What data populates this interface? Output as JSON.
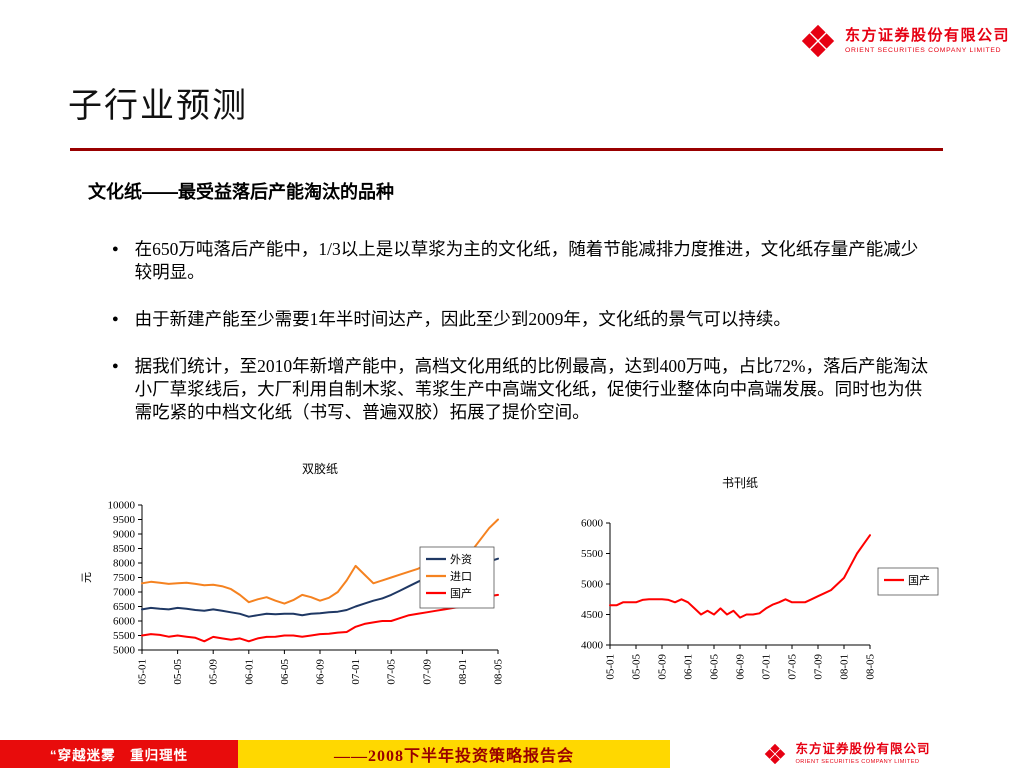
{
  "logo": {
    "company_cn": "东方证券股份有限公司",
    "company_en": "ORIENT SECURITIES COMPANY LIMITED",
    "brand_color": "#E60012"
  },
  "header": {
    "title": "子行业预测",
    "divider_color": "#990000"
  },
  "content": {
    "bullet_marker": "●",
    "subtitle": "文化纸——最受益落后产能淘汰的品种",
    "bullets": [
      "在650万吨落后产能中，1/3以上是以草浆为主的文化纸，随着节能减排力度推进，文化纸存量产能减少较明显。",
      "由于新建产能至少需要1年半时间达产，因此至少到2009年，文化纸的景气可以持续。",
      "据我们统计，至2010年新增产能中，高档文化用纸的比例最高，达到400万吨，占比72%，落后产能淘汰小厂草浆线后，大厂利用自制木浆、苇浆生产中高端文化纸，促使行业整体向中高端发展。同时也为供需吃紧的中档文化纸（书写、普遍双胶）拓展了提价空间。"
    ]
  },
  "footer": {
    "slogan": "“穿越迷雾　重归理性",
    "banner": "——2008下半年投资策略报告会",
    "colors": {
      "slogan_bg": "#E80C0C",
      "banner_bg": "#FFD800",
      "banner_text": "#990000"
    }
  },
  "chart_data": [
    {
      "type": "line",
      "name": "double-offset-paper-price-chart",
      "title": "双胶纸",
      "ylabel": "元",
      "ylim": [
        5000,
        10000
      ],
      "ytick_step": 500,
      "grid": false,
      "legend_position": "right-inside",
      "x": [
        "05-01",
        "05-02",
        "05-03",
        "05-04",
        "05-05",
        "05-06",
        "05-07",
        "05-08",
        "05-09",
        "05-10",
        "05-11",
        "05-12",
        "06-01",
        "06-02",
        "06-03",
        "06-04",
        "06-05",
        "06-06",
        "06-07",
        "06-08",
        "06-09",
        "06-10",
        "06-11",
        "06-12",
        "07-01",
        "07-02",
        "07-03",
        "07-04",
        "07-05",
        "07-06",
        "07-07",
        "07-08",
        "07-09",
        "07-10",
        "07-11",
        "07-12",
        "08-01",
        "08-02",
        "08-03",
        "08-04",
        "08-05"
      ],
      "xtick_labels": [
        "05-01",
        "05-05",
        "05-09",
        "06-01",
        "06-05",
        "06-09",
        "07-01",
        "07-05",
        "07-09",
        "08-01",
        "08-05"
      ],
      "series": [
        {
          "name": "外资",
          "color": "#1F3864",
          "values": [
            6400,
            6450,
            6420,
            6400,
            6450,
            6420,
            6380,
            6350,
            6400,
            6350,
            6300,
            6250,
            6150,
            6200,
            6250,
            6230,
            6250,
            6250,
            6200,
            6250,
            6270,
            6300,
            6320,
            6380,
            6500,
            6600,
            6700,
            6780,
            6900,
            7050,
            7200,
            7350,
            7500,
            7600,
            7700,
            7750,
            7800,
            7900,
            8000,
            8050,
            8150
          ]
        },
        {
          "name": "进口",
          "color": "#F58220",
          "values": [
            7300,
            7350,
            7320,
            7280,
            7300,
            7320,
            7280,
            7230,
            7250,
            7200,
            7100,
            6900,
            6650,
            6750,
            6820,
            6700,
            6600,
            6720,
            6900,
            6820,
            6700,
            6800,
            7000,
            7400,
            7900,
            7600,
            7300,
            7400,
            7500,
            7600,
            7700,
            7800,
            7950,
            8000,
            8000,
            8020,
            8100,
            8400,
            8800,
            9200,
            9500
          ]
        },
        {
          "name": "国产",
          "color": "#FF0000",
          "values": [
            5500,
            5550,
            5520,
            5460,
            5500,
            5460,
            5420,
            5300,
            5450,
            5400,
            5350,
            5400,
            5300,
            5400,
            5450,
            5460,
            5500,
            5500,
            5460,
            5500,
            5550,
            5560,
            5600,
            5620,
            5800,
            5900,
            5950,
            6000,
            6000,
            6100,
            6200,
            6250,
            6300,
            6350,
            6400,
            6450,
            6500,
            6550,
            6700,
            6850,
            6900
          ]
        }
      ]
    },
    {
      "type": "line",
      "name": "book-paper-price-chart",
      "title": "书刊纸",
      "ylabel": "",
      "ylim": [
        4000,
        6000
      ],
      "ytick_step": 500,
      "grid": false,
      "legend_position": "right-outside",
      "x": [
        "05-01",
        "05-02",
        "05-03",
        "05-04",
        "05-05",
        "05-06",
        "05-07",
        "05-08",
        "05-09",
        "05-10",
        "05-11",
        "05-12",
        "06-01",
        "06-02",
        "06-03",
        "06-04",
        "06-05",
        "06-06",
        "06-07",
        "06-08",
        "06-09",
        "06-10",
        "06-11",
        "06-12",
        "07-01",
        "07-02",
        "07-03",
        "07-04",
        "07-05",
        "07-06",
        "07-07",
        "07-08",
        "07-09",
        "07-10",
        "07-11",
        "07-12",
        "08-01",
        "08-02",
        "08-03",
        "08-04",
        "08-05"
      ],
      "xtick_labels": [
        "05-01",
        "05-05",
        "05-09",
        "06-01",
        "06-05",
        "06-09",
        "07-01",
        "07-05",
        "07-09",
        "08-01",
        "08-05"
      ],
      "series": [
        {
          "name": "国产",
          "color": "#FF0000",
          "values": [
            4650,
            4650,
            4700,
            4700,
            4700,
            4740,
            4750,
            4750,
            4750,
            4740,
            4700,
            4750,
            4700,
            4600,
            4500,
            4560,
            4500,
            4600,
            4500,
            4560,
            4450,
            4500,
            4500,
            4520,
            4600,
            4660,
            4700,
            4750,
            4700,
            4700,
            4700,
            4750,
            4800,
            4850,
            4900,
            5000,
            5100,
            5300,
            5500,
            5650,
            5800
          ]
        }
      ]
    }
  ]
}
